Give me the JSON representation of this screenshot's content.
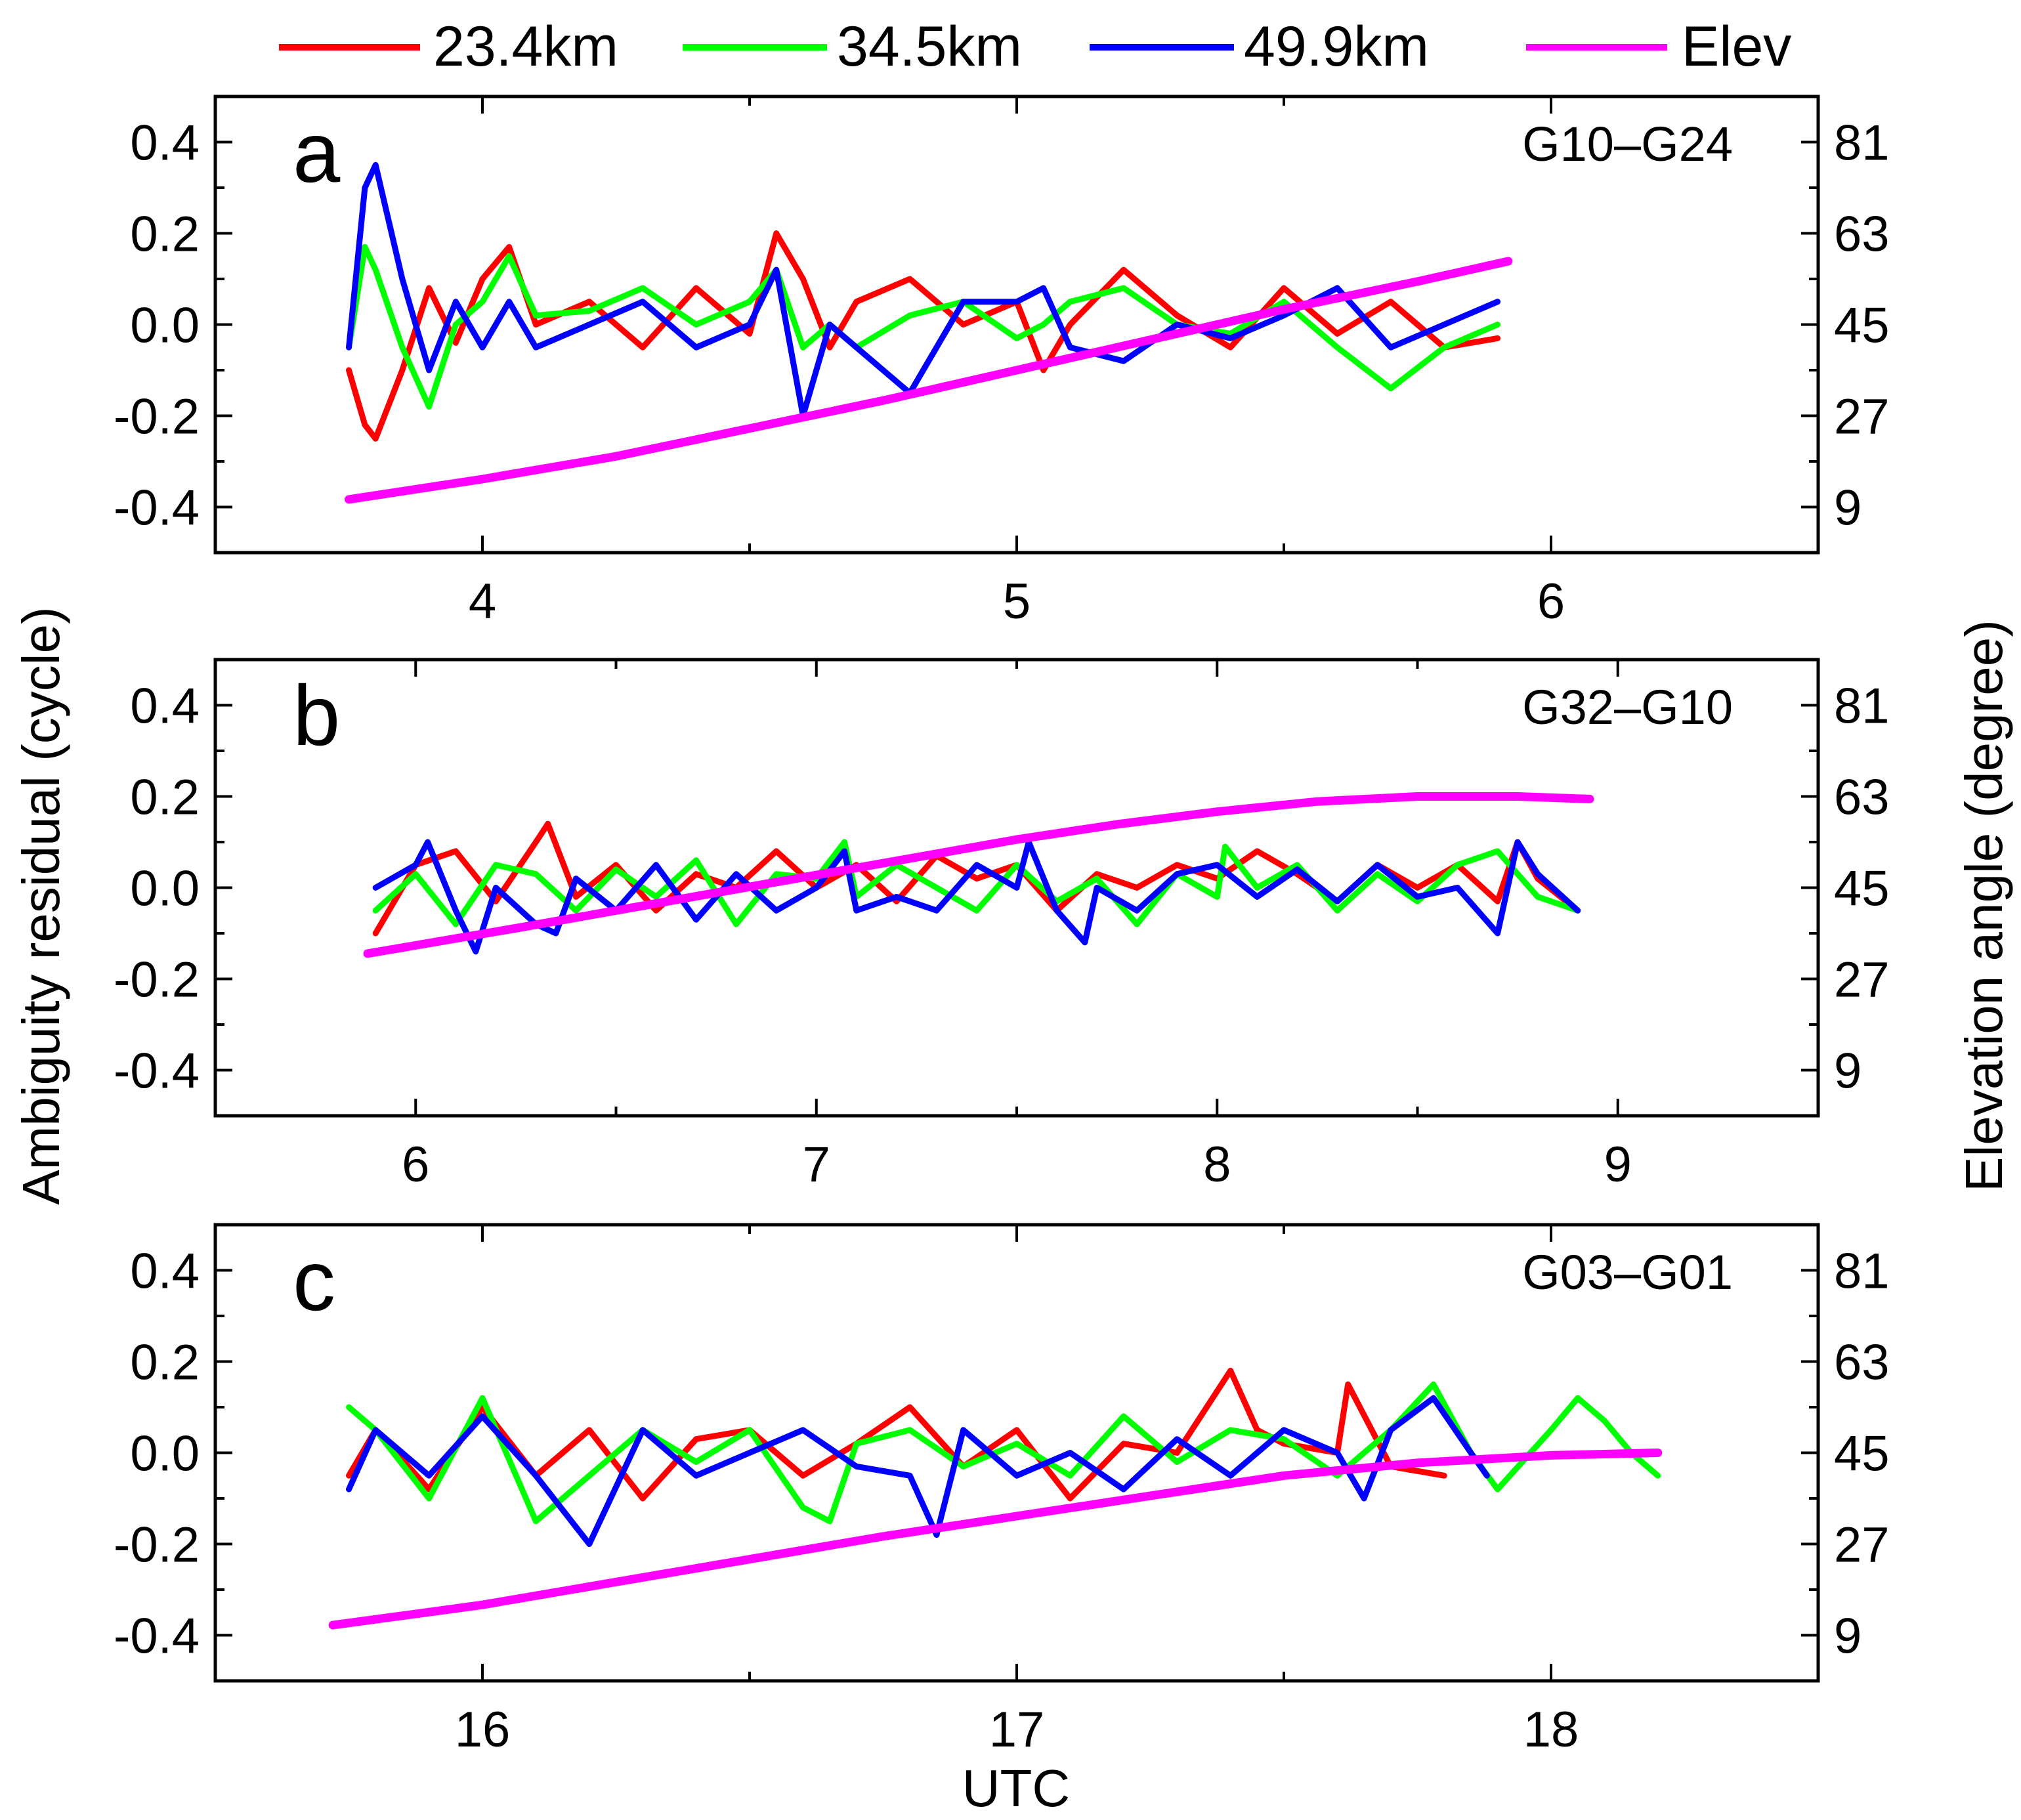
{
  "figure": {
    "left_axis_title": "Ambiguity residual (cycle)",
    "right_axis_title": "Elevation angle (degree)",
    "x_axis_title": "UTC"
  },
  "legend": [
    {
      "label": "23.4km",
      "color": "#ff0000"
    },
    {
      "label": "34.5km",
      "color": "#00ff00"
    },
    {
      "label": "49.9km",
      "color": "#0000ff"
    },
    {
      "label": "Elev",
      "color": "#ff00ff"
    }
  ],
  "chart_data": [
    {
      "type": "line",
      "panel": "a",
      "title": "G10–G24",
      "xlabel": "UTC",
      "ylabel": "Ambiguity residual (cycle)",
      "y2label": "Elevation angle (degree)",
      "xlim": [
        3.5,
        6.5
      ],
      "ylim": [
        -0.5,
        0.5
      ],
      "y2lim": [
        0,
        90
      ],
      "xticks": [
        "4",
        "5",
        "6"
      ],
      "yticks": [
        "0.4",
        "0.2",
        "0.0",
        "-0.2",
        "-0.4"
      ],
      "y2ticks": [
        "81",
        "63",
        "45",
        "27",
        "9"
      ],
      "series": [
        {
          "name": "23.4km",
          "x": [
            3.75,
            3.78,
            3.8,
            3.85,
            3.9,
            3.95,
            4.0,
            4.05,
            4.1,
            4.2,
            4.3,
            4.4,
            4.5,
            4.55,
            4.6,
            4.65,
            4.7,
            4.8,
            4.9,
            5.0,
            5.05,
            5.1,
            5.2,
            5.3,
            5.4,
            5.5,
            5.6,
            5.7,
            5.8,
            5.9
          ],
          "y": [
            -0.1,
            -0.22,
            -0.25,
            -0.1,
            0.08,
            -0.04,
            0.1,
            0.17,
            0.0,
            0.05,
            -0.05,
            0.08,
            -0.02,
            0.2,
            0.1,
            -0.05,
            0.05,
            0.1,
            0.0,
            0.05,
            -0.1,
            0.0,
            0.12,
            0.02,
            -0.05,
            0.08,
            -0.02,
            0.05,
            -0.05,
            -0.03
          ]
        },
        {
          "name": "34.5km",
          "x": [
            3.75,
            3.78,
            3.8,
            3.85,
            3.9,
            3.95,
            4.0,
            4.05,
            4.1,
            4.2,
            4.3,
            4.4,
            4.5,
            4.55,
            4.6,
            4.65,
            4.7,
            4.8,
            4.9,
            5.0,
            5.05,
            5.1,
            5.2,
            5.3,
            5.4,
            5.5,
            5.6,
            5.7,
            5.8,
            5.9
          ],
          "y": [
            -0.05,
            0.17,
            0.12,
            -0.05,
            -0.18,
            0.0,
            0.05,
            0.15,
            0.02,
            0.03,
            0.08,
            0.0,
            0.05,
            0.12,
            -0.05,
            0.0,
            -0.05,
            0.02,
            0.05,
            -0.03,
            0.0,
            0.05,
            0.08,
            0.0,
            -0.02,
            0.05,
            -0.05,
            -0.14,
            -0.05,
            0.0
          ]
        },
        {
          "name": "49.9km",
          "x": [
            3.75,
            3.78,
            3.8,
            3.85,
            3.9,
            3.95,
            4.0,
            4.05,
            4.1,
            4.2,
            4.3,
            4.4,
            4.5,
            4.55,
            4.6,
            4.65,
            4.7,
            4.8,
            4.9,
            5.0,
            5.05,
            5.1,
            5.2,
            5.3,
            5.4,
            5.5,
            5.6,
            5.7,
            5.8,
            5.9
          ],
          "y": [
            -0.05,
            0.3,
            0.35,
            0.1,
            -0.1,
            0.05,
            -0.05,
            0.05,
            -0.05,
            0.0,
            0.05,
            -0.05,
            0.0,
            0.12,
            -0.2,
            0.0,
            -0.05,
            -0.15,
            0.05,
            0.05,
            0.08,
            -0.05,
            -0.08,
            0.0,
            -0.03,
            0.02,
            0.08,
            -0.05,
            0.0,
            0.05
          ]
        },
        {
          "name": "Elev",
          "axis": "right",
          "x": [
            3.75,
            4.0,
            4.25,
            4.5,
            4.75,
            5.0,
            5.25,
            5.5,
            5.75,
            5.92
          ],
          "y": [
            10.5,
            14.5,
            19.0,
            24.5,
            30.0,
            36.0,
            42.0,
            48.0,
            53.5,
            57.5
          ]
        }
      ]
    },
    {
      "type": "line",
      "panel": "b",
      "title": "G32–G10",
      "xlabel": "UTC",
      "ylabel": "Ambiguity residual (cycle)",
      "y2label": "Elevation angle (degree)",
      "xlim": [
        5.5,
        9.5
      ],
      "ylim": [
        -0.5,
        0.5
      ],
      "y2lim": [
        0,
        90
      ],
      "xticks": [
        "6",
        "7",
        "8",
        "9"
      ],
      "yticks": [
        "0.4",
        "0.2",
        "0.0",
        "-0.2",
        "-0.4"
      ],
      "y2ticks": [
        "81",
        "63",
        "45",
        "27",
        "9"
      ],
      "series": [
        {
          "name": "23.4km",
          "x": [
            5.9,
            6.0,
            6.1,
            6.2,
            6.3,
            6.33,
            6.4,
            6.5,
            6.6,
            6.7,
            6.8,
            6.9,
            7.0,
            7.1,
            7.2,
            7.3,
            7.4,
            7.5,
            7.6,
            7.7,
            7.8,
            7.9,
            8.0,
            8.1,
            8.2,
            8.3,
            8.4,
            8.5,
            8.6,
            8.7,
            8.75,
            8.8,
            8.9
          ],
          "y": [
            -0.1,
            0.05,
            0.08,
            -0.03,
            0.1,
            0.14,
            -0.02,
            0.05,
            -0.05,
            0.03,
            0.0,
            0.08,
            0.0,
            0.05,
            -0.03,
            0.07,
            0.02,
            0.05,
            -0.05,
            0.03,
            0.0,
            0.05,
            0.02,
            0.08,
            0.03,
            -0.03,
            0.05,
            0.0,
            0.05,
            -0.03,
            0.1,
            0.02,
            -0.05
          ]
        },
        {
          "name": "34.5km",
          "x": [
            5.9,
            6.0,
            6.1,
            6.2,
            6.3,
            6.4,
            6.5,
            6.6,
            6.7,
            6.8,
            6.9,
            7.0,
            7.07,
            7.1,
            7.2,
            7.3,
            7.4,
            7.5,
            7.6,
            7.7,
            7.8,
            7.9,
            8.0,
            8.02,
            8.1,
            8.2,
            8.3,
            8.4,
            8.5,
            8.6,
            8.7,
            8.8,
            8.9
          ],
          "y": [
            -0.05,
            0.03,
            -0.08,
            0.05,
            0.03,
            -0.05,
            0.04,
            -0.02,
            0.06,
            -0.08,
            0.03,
            0.02,
            0.1,
            -0.02,
            0.05,
            0.0,
            -0.05,
            0.05,
            -0.03,
            0.02,
            -0.08,
            0.03,
            -0.02,
            0.09,
            0.0,
            0.05,
            -0.05,
            0.03,
            -0.03,
            0.05,
            0.08,
            -0.02,
            -0.05
          ]
        },
        {
          "name": "49.9km",
          "x": [
            5.9,
            6.0,
            6.03,
            6.1,
            6.15,
            6.2,
            6.3,
            6.35,
            6.4,
            6.5,
            6.6,
            6.7,
            6.8,
            6.9,
            7.0,
            7.07,
            7.1,
            7.2,
            7.3,
            7.4,
            7.5,
            7.53,
            7.6,
            7.67,
            7.7,
            7.8,
            7.9,
            8.0,
            8.1,
            8.2,
            8.3,
            8.4,
            8.5,
            8.6,
            8.7,
            8.75,
            8.8,
            8.9
          ],
          "y": [
            0.0,
            0.05,
            0.1,
            -0.05,
            -0.14,
            0.0,
            -0.08,
            -0.1,
            0.02,
            -0.05,
            0.05,
            -0.07,
            0.03,
            -0.05,
            0.0,
            0.08,
            -0.05,
            -0.02,
            -0.05,
            0.05,
            0.0,
            0.1,
            -0.05,
            -0.12,
            0.0,
            -0.05,
            0.03,
            0.05,
            -0.02,
            0.04,
            -0.03,
            0.05,
            -0.02,
            0.0,
            -0.1,
            0.1,
            0.03,
            -0.05
          ]
        },
        {
          "name": "Elev",
          "axis": "right",
          "x": [
            5.88,
            6.25,
            6.5,
            6.75,
            7.0,
            7.25,
            7.5,
            7.75,
            8.0,
            8.25,
            8.5,
            8.75,
            8.93
          ],
          "y": [
            32.0,
            37.0,
            40.5,
            44.0,
            47.5,
            51.0,
            54.5,
            57.5,
            60.0,
            62.0,
            63.0,
            63.0,
            62.5
          ]
        }
      ]
    },
    {
      "type": "line",
      "panel": "c",
      "title": "G03–G01",
      "xlabel": "UTC",
      "ylabel": "Ambiguity residual (cycle)",
      "y2label": "Elevation angle (degree)",
      "xlim": [
        15.5,
        18.5
      ],
      "ylim": [
        -0.5,
        0.5
      ],
      "y2lim": [
        0,
        90
      ],
      "xticks": [
        "16",
        "17",
        "18"
      ],
      "yticks": [
        "0.4",
        "0.2",
        "0.0",
        "-0.2",
        "-0.4"
      ],
      "y2ticks": [
        "81",
        "63",
        "45",
        "27",
        "9"
      ],
      "series": [
        {
          "name": "23.4km",
          "x": [
            15.75,
            15.8,
            15.9,
            16.0,
            16.1,
            16.2,
            16.3,
            16.4,
            16.5,
            16.6,
            16.7,
            16.8,
            16.9,
            17.0,
            17.1,
            17.2,
            17.3,
            17.4,
            17.45,
            17.5,
            17.6,
            17.62,
            17.7,
            17.8
          ],
          "y": [
            -0.05,
            0.05,
            -0.08,
            0.1,
            -0.05,
            0.05,
            -0.1,
            0.03,
            0.05,
            -0.05,
            0.02,
            0.1,
            -0.03,
            0.05,
            -0.1,
            0.02,
            0.0,
            0.18,
            0.05,
            0.02,
            0.0,
            0.15,
            -0.03,
            -0.05
          ]
        },
        {
          "name": "34.5km",
          "x": [
            15.75,
            15.8,
            15.9,
            16.0,
            16.1,
            16.2,
            16.3,
            16.4,
            16.5,
            16.6,
            16.65,
            16.7,
            16.8,
            16.9,
            17.0,
            17.1,
            17.2,
            17.3,
            17.4,
            17.5,
            17.6,
            17.7,
            17.78,
            17.85,
            17.9,
            18.0,
            18.05,
            18.1,
            18.15,
            18.2
          ],
          "y": [
            0.1,
            0.05,
            -0.1,
            0.12,
            -0.15,
            -0.05,
            0.05,
            -0.02,
            0.05,
            -0.12,
            -0.15,
            0.02,
            0.05,
            -0.03,
            0.02,
            -0.05,
            0.08,
            -0.02,
            0.05,
            0.03,
            -0.05,
            0.05,
            0.15,
            0.0,
            -0.08,
            0.05,
            0.12,
            0.07,
            0.0,
            -0.05
          ]
        },
        {
          "name": "49.9km",
          "x": [
            15.75,
            15.8,
            15.9,
            16.0,
            16.1,
            16.2,
            16.3,
            16.4,
            16.5,
            16.6,
            16.7,
            16.8,
            16.85,
            16.9,
            17.0,
            17.1,
            17.2,
            17.3,
            17.4,
            17.5,
            17.6,
            17.65,
            17.7,
            17.78,
            17.85,
            17.88
          ],
          "y": [
            -0.08,
            0.05,
            -0.05,
            0.08,
            -0.05,
            -0.2,
            0.05,
            -0.05,
            0.0,
            0.05,
            -0.03,
            -0.05,
            -0.18,
            0.05,
            -0.05,
            0.0,
            -0.08,
            0.03,
            -0.05,
            0.05,
            0.0,
            -0.1,
            0.05,
            0.12,
            0.0,
            -0.05
          ]
        },
        {
          "name": "Elev",
          "axis": "right",
          "x": [
            15.72,
            16.0,
            16.25,
            16.5,
            16.75,
            17.0,
            17.25,
            17.5,
            17.75,
            18.0,
            18.2
          ],
          "y": [
            11.0,
            15.0,
            19.5,
            24.0,
            28.5,
            32.5,
            36.5,
            40.5,
            43.0,
            44.5,
            45.0
          ]
        }
      ]
    }
  ]
}
